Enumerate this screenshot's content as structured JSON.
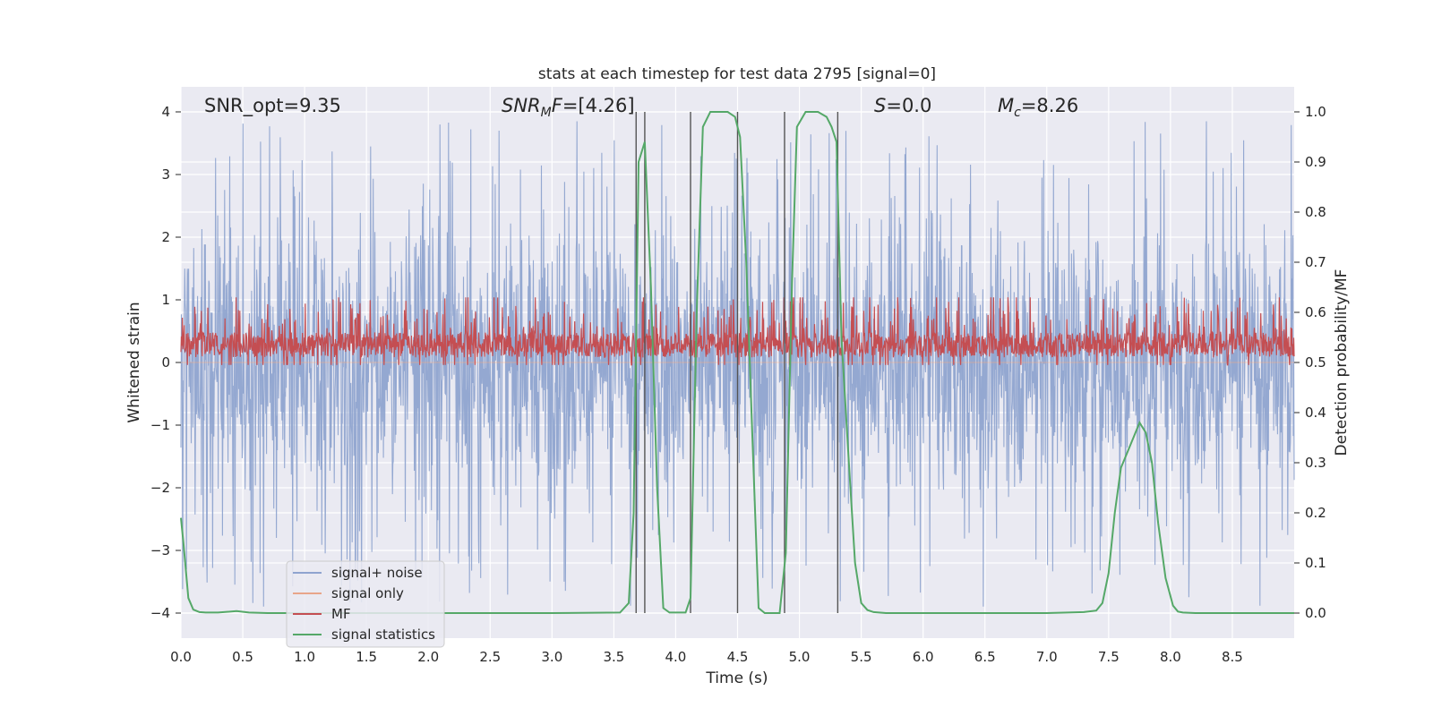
{
  "chart_data": {
    "type": "line",
    "title": "stats at each timestep for test data 2795 [signal=0]",
    "xlabel": "Time (s)",
    "ylabel": "Whitened strain",
    "y2label": "Detection probability/MF",
    "xlim": [
      0.0,
      9.0
    ],
    "ylim": [
      -4.4,
      4.4
    ],
    "y2lim": [
      -0.05,
      1.05
    ],
    "xticks": [
      "0.0",
      "0.5",
      "1.0",
      "1.5",
      "2.0",
      "2.5",
      "3.0",
      "3.5",
      "4.0",
      "4.5",
      "5.0",
      "5.5",
      "6.0",
      "6.5",
      "7.0",
      "7.5",
      "8.0",
      "8.5"
    ],
    "yticks": [
      "4",
      "3",
      "2",
      "1",
      "0",
      "−1",
      "−2",
      "−3",
      "−4"
    ],
    "y2ticks": [
      "1.0",
      "0.9",
      "0.8",
      "0.7",
      "0.6",
      "0.5",
      "0.4",
      "0.3",
      "0.2",
      "0.1",
      "0.0"
    ],
    "annotations": {
      "snr_opt": "SNR_opt=9.35",
      "snr_mf_sym": "SNR",
      "snr_mf_sub": "M",
      "snr_mf_rest": "F",
      "snr_mf_value": "=[4.26]",
      "s_sym": "S",
      "s_value": "=0.0",
      "mc_sym": "M",
      "mc_sub": "c",
      "mc_value": "=8.26"
    },
    "vlines": [
      3.68,
      3.75,
      4.12,
      4.5,
      4.88,
      5.31
    ],
    "series": [
      {
        "name": "signal+ noise",
        "color": "#8fa4cf",
        "axis": "left",
        "kind": "noise",
        "amplitude_range": [
          -3.9,
          3.9
        ]
      },
      {
        "name": "signal only",
        "color": "#e8a58a",
        "axis": "left",
        "kind": "flat",
        "value": 0
      },
      {
        "name": "MF",
        "color": "#c44e52",
        "axis": "right",
        "kind": "noise",
        "amplitude_range": [
          0.5,
          0.63
        ]
      },
      {
        "name": "signal statistics",
        "color": "#55a868",
        "axis": "right",
        "kind": "line",
        "x": [
          0.0,
          0.02,
          0.06,
          0.1,
          0.15,
          0.2,
          0.3,
          0.45,
          0.55,
          0.7,
          1.0,
          2.0,
          3.0,
          3.55,
          3.62,
          3.66,
          3.7,
          3.75,
          3.8,
          3.85,
          3.9,
          3.95,
          4.0,
          4.08,
          4.12,
          4.17,
          4.22,
          4.28,
          4.32,
          4.42,
          4.48,
          4.52,
          4.57,
          4.62,
          4.67,
          4.72,
          4.78,
          4.84,
          4.89,
          4.94,
          4.98,
          5.05,
          5.15,
          5.22,
          5.26,
          5.3,
          5.34,
          5.4,
          5.45,
          5.5,
          5.55,
          5.6,
          5.7,
          5.8,
          6.0,
          7.0,
          7.3,
          7.4,
          7.45,
          7.5,
          7.55,
          7.6,
          7.65,
          7.7,
          7.75,
          7.8,
          7.85,
          7.9,
          7.96,
          8.02,
          8.06,
          8.1,
          8.2,
          8.5,
          9.0
        ],
        "y": [
          0.19,
          0.14,
          0.03,
          0.007,
          0.002,
          0.001,
          0.001,
          0.004,
          0.001,
          0.0,
          0.0,
          0.0,
          0.0,
          0.001,
          0.02,
          0.2,
          0.9,
          0.94,
          0.65,
          0.25,
          0.01,
          0.001,
          0.001,
          0.001,
          0.03,
          0.6,
          0.97,
          1.0,
          1.0,
          1.0,
          0.99,
          0.95,
          0.7,
          0.35,
          0.01,
          0.0,
          0.0,
          0.0,
          0.12,
          0.66,
          0.97,
          1.0,
          1.0,
          0.99,
          0.97,
          0.94,
          0.55,
          0.3,
          0.1,
          0.02,
          0.006,
          0.002,
          0.0,
          0.0,
          0.0,
          0.0,
          0.002,
          0.005,
          0.02,
          0.08,
          0.2,
          0.29,
          0.32,
          0.35,
          0.38,
          0.36,
          0.3,
          0.18,
          0.07,
          0.015,
          0.003,
          0.001,
          0.0,
          0.0,
          0.0
        ]
      }
    ],
    "legend": {
      "position": "lower-left"
    }
  }
}
